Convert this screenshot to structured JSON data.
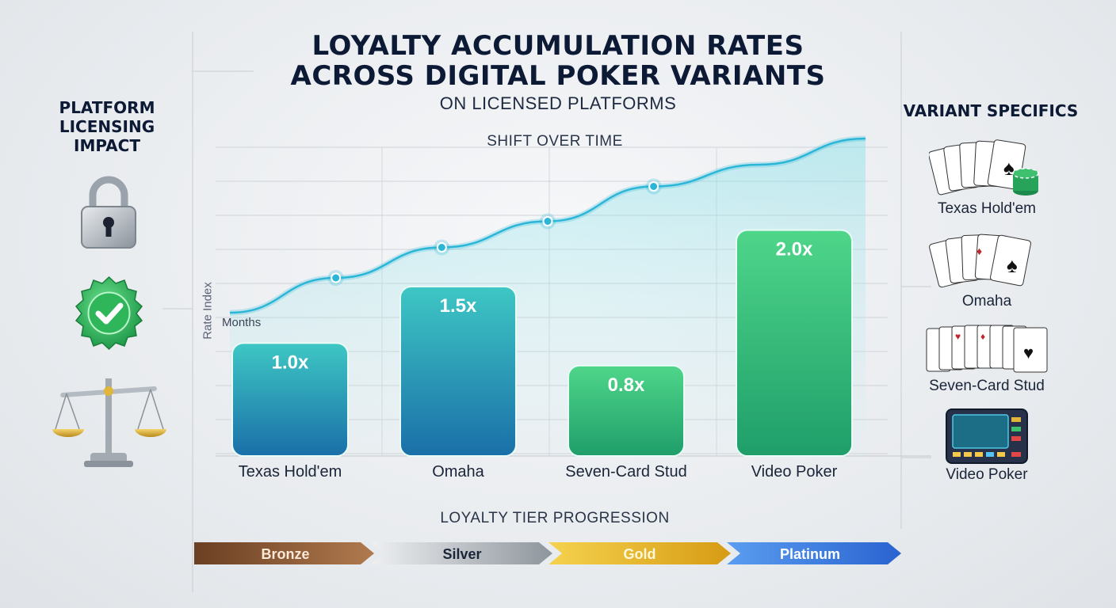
{
  "title_lines": [
    "LOYALTY ACCUMULATION RATES",
    "ACROSS DIGITAL POKER VARIANTS"
  ],
  "subtitle": "ON LICENSED PLATFORMS",
  "left_panel": {
    "title_lines": [
      "PLATFORM",
      "LICENSING",
      "IMPACT"
    ],
    "icons": [
      "padlock-icon",
      "verified-badge-icon",
      "scales-of-justice-icon"
    ]
  },
  "right_panel": {
    "title": "VARIANT SPECIFICS",
    "items": [
      {
        "label": "Texas Hold'em",
        "icon": "cards-and-chips-icon"
      },
      {
        "label": "Omaha",
        "icon": "playing-cards-icon"
      },
      {
        "label": "Seven-Card Stud",
        "icon": "card-spread-icon"
      },
      {
        "label": "Video Poker",
        "icon": "video-poker-machine-icon"
      }
    ]
  },
  "colors": {
    "bar_blue_top": "#3ec7c4",
    "bar_blue_bottom": "#1a6fa8",
    "bar_green_top": "#4fd68a",
    "bar_green_bottom": "#1f9e6a",
    "line": "#2bb6d8",
    "bronze": "#7a4a2a",
    "silver": "#9aa1a8",
    "gold": "#e4b526",
    "platinum": "#3b7ee0"
  },
  "chart_data": {
    "type": "bar",
    "categories": [
      "Texas Hold'em",
      "Omaha",
      "Seven-Card Stud",
      "Video Poker"
    ],
    "values": [
      1.0,
      1.5,
      0.8,
      2.0
    ],
    "value_labels": [
      "1.0x",
      "1.5x",
      "0.8x",
      "2.0x"
    ],
    "ylim": [
      0,
      3.0
    ],
    "overlay_line": {
      "label": "SHIFT OVER TIME",
      "points": [
        1.0,
        1.4,
        1.75,
        2.05,
        2.45,
        2.7,
        3.0
      ],
      "markers": [
        1,
        2,
        3,
        4
      ]
    },
    "ylabel": "Rate Index",
    "xlabel": "Months",
    "tier_axis_label": "LOYALTY TIER PROGRESSION",
    "tiers": [
      "Bronze",
      "Silver",
      "Gold",
      "Platinum"
    ],
    "grid": true
  }
}
